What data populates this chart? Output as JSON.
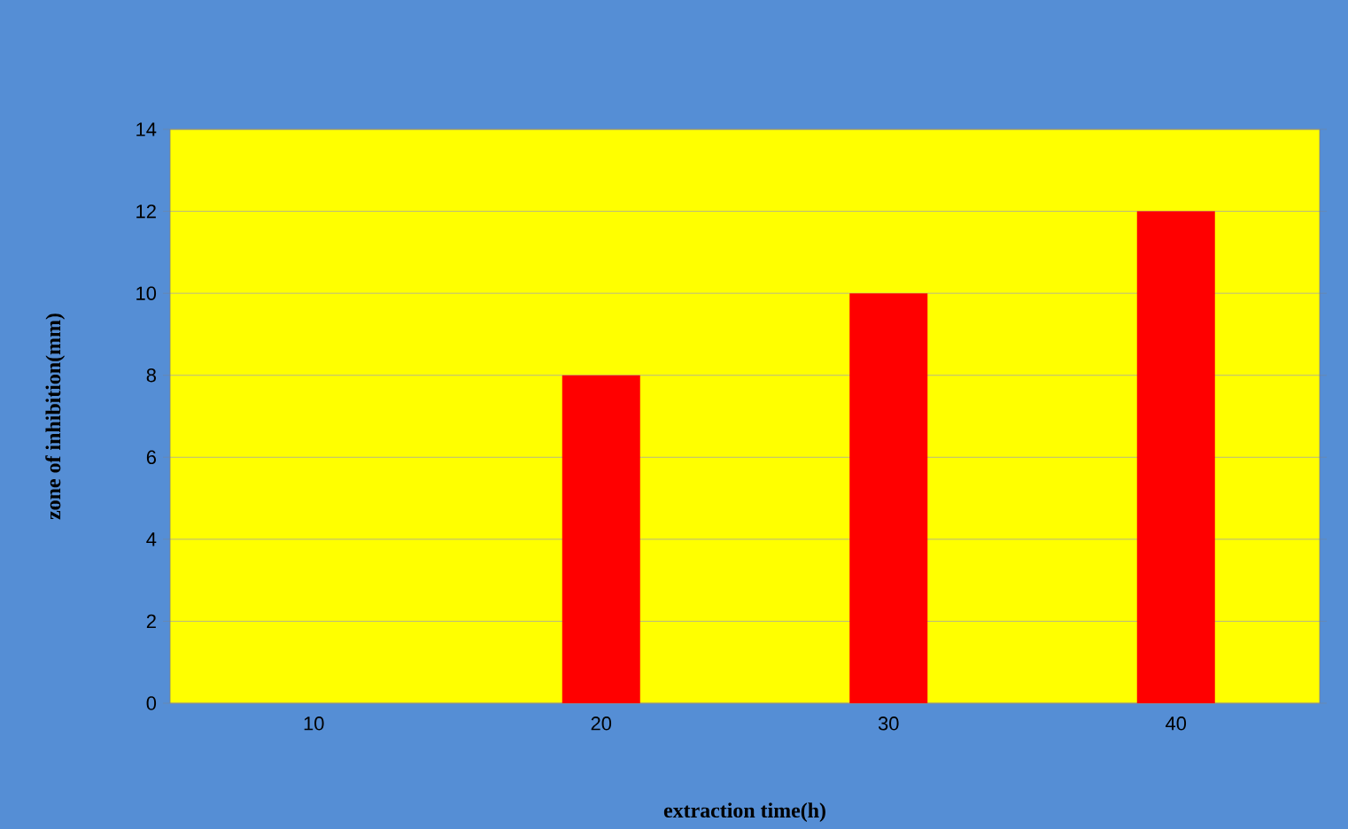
{
  "chart_data": {
    "type": "bar",
    "xlabel": "extraction time(h)",
    "ylabel": "zone of inhibition(mm)",
    "categories": [
      "10",
      "20",
      "30",
      "40"
    ],
    "values": [
      0,
      8,
      10,
      12
    ],
    "color": "#ff0000",
    "ylim": [
      0,
      14
    ],
    "yticks": [
      0,
      2,
      4,
      6,
      8,
      10,
      12,
      14
    ],
    "grid": "y"
  }
}
